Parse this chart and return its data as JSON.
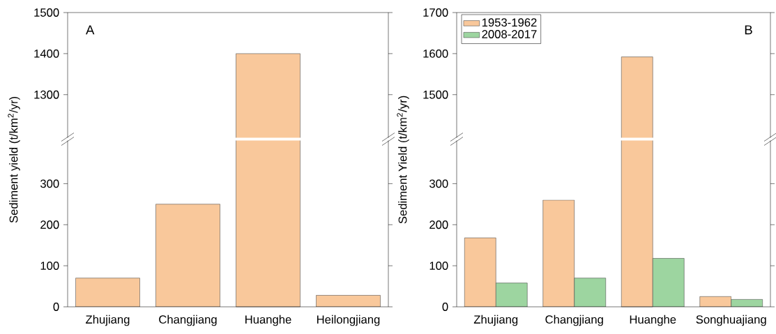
{
  "chart_data": [
    {
      "type": "bar",
      "categories": [
        null,
        null,
        null,
        null
      ],
      "values": [
        null,
        null,
        1400,
        null
      ],
      "color": "#f9c89b",
      "ylim": [
        1195,
        1500
      ],
      "yticks": [
        1300,
        1400,
        1500
      ],
      "tick_labels": "y",
      "annotations": [
        "A"
      ]
    },
    {
      "type": "bar",
      "ylabel": "Sediment yield (t/km$^{2}$/yr)",
      "categories": [
        "Zhujiang",
        "Changjiang",
        "Huanghe",
        "Heilongjiang"
      ],
      "values": [
        70,
        250,
        null,
        28
      ],
      "color": "#f9c89b",
      "ylim": [
        0,
        405
      ],
      "yticks": [
        0,
        100,
        200,
        300
      ]
    },
    {
      "type": "bar",
      "categories": [
        null,
        null,
        null,
        null
      ],
      "series": [
        {
          "name": "1953-1962",
          "color": "#f9c89b",
          "values": [
            null,
            null,
            1592,
            null
          ]
        },
        {
          "name": "2008-2017",
          "color": "#9dd5a0",
          "values": [
            null,
            null,
            null,
            null
          ]
        }
      ],
      "ylim": [
        1395,
        1700
      ],
      "yticks": [
        1500,
        1600,
        1700
      ],
      "tick_labels": "y",
      "legend": "top left",
      "annotations": [
        "B"
      ]
    },
    {
      "type": "bar",
      "ylabel": "Sediment Yield (t/km$^{2}$/yr)",
      "categories": [
        "Zhujiang",
        "Changjiang",
        "Huanghe",
        "Songhuajiang"
      ],
      "series": [
        {
          "color": "#f9c89b",
          "values": [
            168,
            260,
            null,
            25
          ]
        },
        {
          "color": "#9dd5a0",
          "values": [
            58,
            70,
            118,
            18
          ]
        }
      ],
      "ylim": [
        0,
        405
      ],
      "yticks": [
        0,
        100,
        200,
        300
      ]
    }
  ]
}
